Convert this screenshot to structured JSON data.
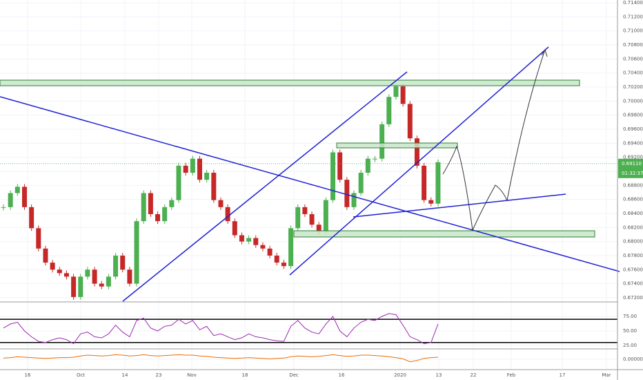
{
  "chart_data": [
    {
      "type": "candlestick",
      "close": [
        0.6849,
        0.6869,
        0.6878,
        0.6849,
        0.6819,
        0.679,
        0.677,
        0.676,
        0.6755,
        0.675,
        0.6721,
        0.675,
        0.676,
        0.674,
        0.6736,
        0.675,
        0.678,
        0.676,
        0.674,
        0.6829,
        0.6869,
        0.6839,
        0.6829,
        0.6849,
        0.6859,
        0.6908,
        0.6898,
        0.6918,
        0.6888,
        0.6898,
        0.6859,
        0.6849,
        0.6829,
        0.6809,
        0.68,
        0.6805,
        0.6795,
        0.679,
        0.678,
        0.677,
        0.6765,
        0.6819,
        0.6849,
        0.6839,
        0.6824,
        0.6814,
        0.6859,
        0.6927,
        0.6888,
        0.6849,
        0.6869,
        0.6898,
        0.6918,
        0.6918,
        0.6967,
        0.7006,
        0.7021,
        0.6996,
        0.6947,
        0.6908,
        0.6859,
        0.6854,
        0.6913
      ],
      "up_color": "#4caf50",
      "down_color": "#c62828",
      "ylim": [
        0.6714,
        0.7144
      ],
      "yticks": [
        {
          "value": 0.714,
          "label": "0.71400"
        },
        {
          "value": 0.712,
          "label": "0.71200"
        },
        {
          "value": 0.71,
          "label": "0.71000"
        },
        {
          "value": 0.708,
          "label": "0.70800"
        },
        {
          "value": 0.706,
          "label": "0.70600"
        },
        {
          "value": 0.704,
          "label": "0.70400"
        },
        {
          "value": 0.702,
          "label": "0.70200"
        },
        {
          "value": 0.7,
          "label": "0.70000"
        },
        {
          "value": 0.698,
          "label": "0.69800"
        },
        {
          "value": 0.696,
          "label": "0.69600"
        },
        {
          "value": 0.694,
          "label": "0.69400"
        },
        {
          "value": 0.692,
          "label": "0.69200"
        },
        {
          "value": 0.69,
          "label": "0.69000"
        },
        {
          "value": 0.688,
          "label": "0.68800"
        },
        {
          "value": 0.686,
          "label": "0.68600"
        },
        {
          "value": 0.684,
          "label": "0.68400"
        },
        {
          "value": 0.682,
          "label": "0.68200"
        },
        {
          "value": 0.68,
          "label": "0.68000"
        },
        {
          "value": 0.678,
          "label": "0.67800"
        },
        {
          "value": 0.676,
          "label": "0.67600"
        },
        {
          "value": 0.674,
          "label": "0.67400"
        },
        {
          "value": 0.672,
          "label": "0.67200"
        }
      ],
      "last_price": {
        "value": 0.6911,
        "label": "0.69110"
      },
      "countdown": "01:32:37",
      "x_labels": [
        "16",
        "Oct",
        "14",
        "23",
        "Nov",
        "18",
        "Dec",
        "16",
        "2020",
        "13",
        "22",
        "Feb",
        "17",
        "Mar"
      ],
      "grid": true
    },
    {
      "type": "line",
      "color": "#9c27b0",
      "values": [
        55,
        62,
        65,
        50,
        40,
        32,
        30,
        35,
        38,
        35,
        28,
        45,
        48,
        40,
        38,
        45,
        60,
        48,
        40,
        68,
        72,
        55,
        50,
        58,
        60,
        70,
        62,
        68,
        52,
        58,
        42,
        45,
        40,
        35,
        38,
        45,
        40,
        38,
        35,
        33,
        32,
        58,
        68,
        55,
        48,
        45,
        62,
        75,
        50,
        40,
        55,
        65,
        70,
        68,
        75,
        80,
        78,
        60,
        40,
        35,
        28,
        30,
        62
      ],
      "ylim": [
        19,
        100
      ],
      "yticks": [
        {
          "value": 75,
          "label": "75.00"
        },
        {
          "value": 50,
          "label": "50.00"
        },
        {
          "value": 25,
          "label": "25.00"
        }
      ],
      "bands": [
        70,
        30
      ]
    },
    {
      "type": "line",
      "color": "#ef6c00",
      "values": [
        0.0003,
        0.0004,
        0.0006,
        0.0005,
        0.0004,
        0.0003,
        0.0002,
        0.0003,
        0.0004,
        0.0004,
        0.0005,
        0.0008,
        0.001,
        0.0009,
        0.0008,
        0.0009,
        0.0011,
        0.001,
        0.0008,
        0.0009,
        0.0011,
        0.0009,
        0.0008,
        0.0009,
        0.001,
        0.0011,
        0.001,
        0.001,
        0.0008,
        0.0007,
        0.0005,
        0.0004,
        0.0003,
        0.0002,
        0.0003,
        0.0004,
        0.0003,
        0.0002,
        0.0001,
        0.0002,
        0.0003,
        0.0006,
        0.0008,
        0.0007,
        0.0006,
        0.0007,
        0.0009,
        0.0011,
        0.0009,
        0.0007,
        0.0008,
        0.001,
        0.001,
        0.0009,
        0.0008,
        0.0006,
        0.0004,
        0.0001,
        -0.0006,
        -0.0003,
        0.0002,
        0.0004,
        0.0005
      ],
      "ylim": [
        -0.0025,
        0.0025
      ],
      "yticks": [
        {
          "value": 0,
          "label": "0.00000"
        }
      ]
    }
  ]
}
